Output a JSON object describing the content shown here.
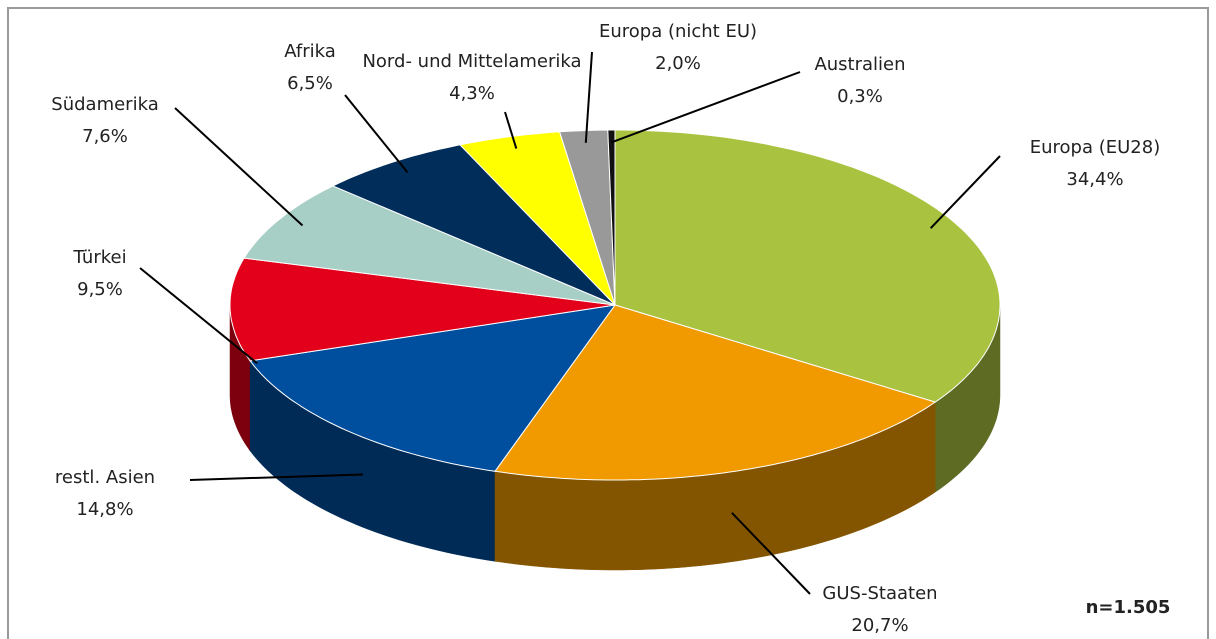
{
  "chart_data": {
    "type": "pie",
    "categories": [
      "Europa (EU28)",
      "GUS-Staaten",
      "restl. Asien",
      "Türkei",
      "Südamerika",
      "Afrika",
      "Nord- und Mittelamerika",
      "Europa (nicht EU)",
      "Australien"
    ],
    "values": [
      34.4,
      20.7,
      14.8,
      9.5,
      7.6,
      6.5,
      4.3,
      2.0,
      0.3
    ],
    "value_labels": [
      "34,4%",
      "20,7%",
      "14,8%",
      "9,5%",
      "7,6%",
      "6,5%",
      "4,3%",
      "2,0%",
      "0,3%"
    ],
    "colors": [
      "#a9c23f",
      "#f09a00",
      "#004f9f",
      "#e2001a",
      "#a8cfc6",
      "#002d5a",
      "#ffff00",
      "#999999",
      "#111111"
    ],
    "annotation": "n=1.505"
  }
}
